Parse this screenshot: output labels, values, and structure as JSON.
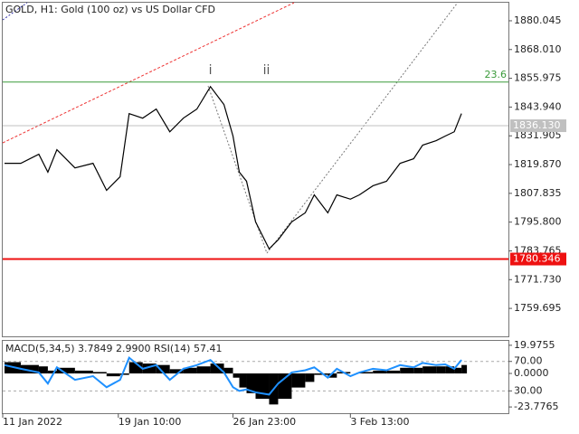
{
  "chart_data": [
    {
      "type": "line",
      "title": "GOLD, H1:  Gold (100 oz) vs US Dollar CFD",
      "x": [
        2,
        20,
        40,
        50,
        60,
        80,
        100,
        115,
        130,
        140,
        155,
        170,
        185,
        200,
        215,
        230,
        245,
        255,
        262,
        270,
        280,
        295,
        305,
        320,
        335,
        345,
        360,
        370,
        385,
        395,
        410,
        425,
        440,
        455,
        465,
        480,
        490,
        500,
        508
      ],
      "series": [
        {
          "name": "GOLD",
          "color": "#000000",
          "values": [
            1820.4,
            1820.4,
            1824.2,
            1816.7,
            1826.1,
            1818.5,
            1820.4,
            1809.1,
            1814.8,
            1841.2,
            1839.3,
            1843.1,
            1833.6,
            1839.3,
            1843.1,
            1852.5,
            1845.0,
            1831.8,
            1816.7,
            1812.9,
            1795.9,
            1784.6,
            1788.4,
            1795.9,
            1799.7,
            1807.2,
            1799.7,
            1807.2,
            1805.4,
            1807.2,
            1811.0,
            1812.9,
            1820.4,
            1822.3,
            1828.0,
            1829.9,
            1831.8,
            1833.6,
            1841.2
          ]
        }
      ],
      "xlim": [
        0,
        560
      ],
      "xticks": [
        {
          "value": 0,
          "label": "11 Jan 2022"
        },
        {
          "value": 128,
          "label": "19 Jan 10:00"
        },
        {
          "value": 255,
          "label": "26 Jan 23:00"
        },
        {
          "value": 385,
          "label": "3 Feb 13:00"
        }
      ],
      "ylim": [
        1748.0,
        1887.6
      ],
      "yticks": [
        {
          "value": 1880.045,
          "label": "1880.045"
        },
        {
          "value": 1868.01,
          "label": "1868.010"
        },
        {
          "value": 1855.975,
          "label": "1855.975"
        },
        {
          "value": 1843.94,
          "label": "1843.940"
        },
        {
          "value": 1831.905,
          "label": "1831.905"
        },
        {
          "value": 1819.87,
          "label": "1819.870"
        },
        {
          "value": 1807.835,
          "label": "1807.835"
        },
        {
          "value": 1795.8,
          "label": "1795.800"
        },
        {
          "value": 1783.765,
          "label": "1783.765"
        },
        {
          "value": 1771.73,
          "label": "1771.730"
        },
        {
          "value": 1759.695,
          "label": "1759.695"
        }
      ],
      "levels": [
        {
          "label": "23.6",
          "value": 1854.4,
          "color": "#3a9a3a"
        }
      ],
      "price_lines": [
        {
          "value": 1836.13,
          "label": "1836.130",
          "color": "#c0c0c0"
        },
        {
          "value": 1780.346,
          "label": "1780.346",
          "color": "#ee1111"
        }
      ],
      "annotations": [
        {
          "text": "i",
          "x": 230
        },
        {
          "text": "ii",
          "x": 292
        }
      ]
    },
    {
      "type": "bar",
      "title": "MACD(5,34,5) 3.7849 2.9900 RSI(14) 57.41",
      "x": [
        2,
        20,
        40,
        50,
        60,
        80,
        100,
        115,
        130,
        140,
        155,
        170,
        185,
        200,
        215,
        230,
        245,
        255,
        262,
        270,
        280,
        295,
        305,
        320,
        335,
        345,
        360,
        370,
        385,
        395,
        410,
        425,
        440,
        455,
        465,
        480,
        490,
        500,
        508
      ],
      "series": [
        {
          "name": "MACD",
          "color": "#000000",
          "values": [
            8,
            6,
            5,
            2,
            4,
            2,
            1,
            -2,
            -1,
            8,
            7,
            6,
            3,
            4,
            5,
            7,
            4,
            -3,
            -10,
            -14,
            -18,
            -22,
            -18,
            -10,
            -6,
            -1,
            -3,
            1,
            0,
            1,
            2,
            2,
            4,
            4,
            5,
            5,
            5,
            4,
            6
          ]
        },
        {
          "name": "RSI",
          "color": "#1e90ff",
          "axis": "y2",
          "values": [
            65,
            60,
            55,
            40,
            62,
            45,
            50,
            35,
            45,
            75,
            60,
            65,
            45,
            60,
            65,
            72,
            55,
            35,
            30,
            32,
            28,
            25,
            40,
            55,
            58,
            62,
            48,
            60,
            50,
            55,
            60,
            58,
            65,
            62,
            68,
            65,
            66,
            60,
            72
          ]
        }
      ],
      "xlim": [
        0,
        560
      ],
      "ylim": [
        -28.2,
        23.1
      ],
      "yticks": [
        {
          "value": 19.9755,
          "label": "19.9755"
        },
        {
          "value": 0,
          "label": "0.0000"
        },
        {
          "value": -23.7765,
          "label": "-23.7765"
        }
      ],
      "y2lim": [
        -0.3,
        97.9
      ],
      "y2ticks": [
        {
          "value": 70,
          "label": "70.00"
        },
        {
          "value": 30,
          "label": "30.00"
        }
      ]
    }
  ]
}
